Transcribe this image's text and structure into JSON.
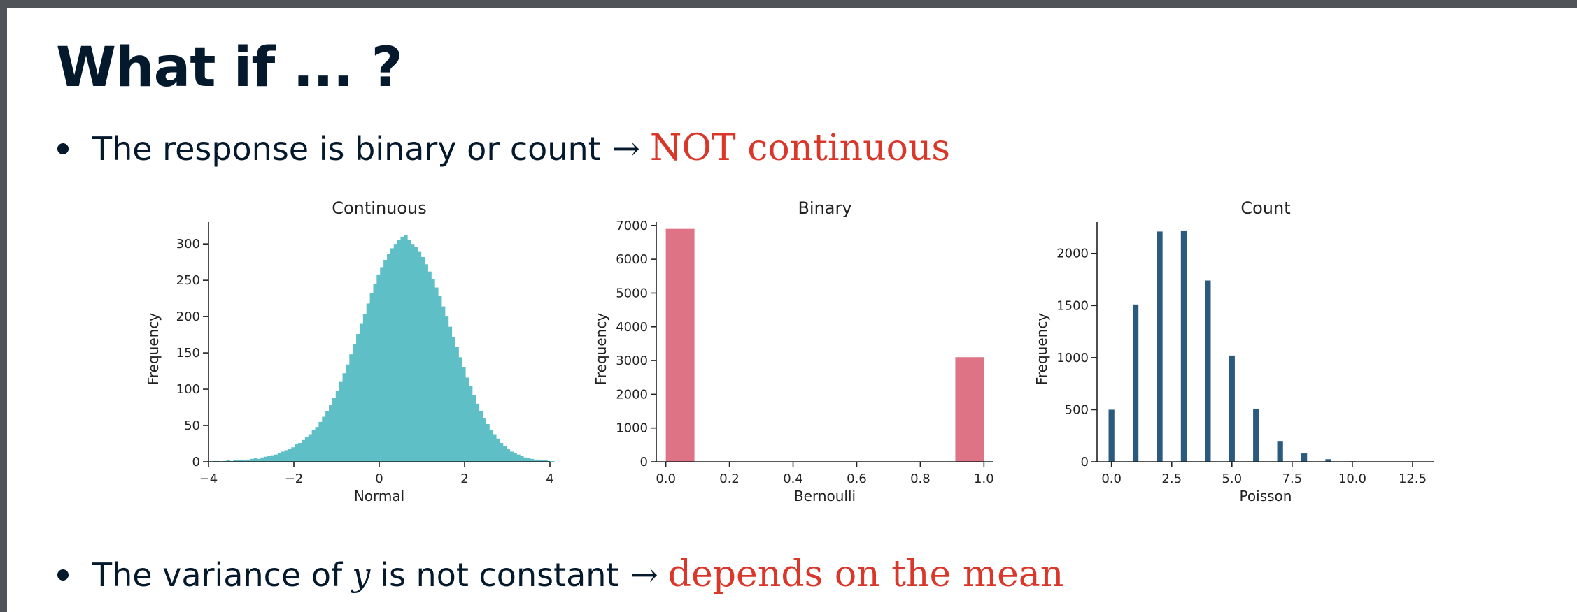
{
  "slide": {
    "title": "What if ... ?",
    "bullet1": {
      "text": "The response is binary or count",
      "arrow": "→",
      "emphasis": "NOT continuous"
    },
    "bullet2": {
      "text_before": "The variance of",
      "var": "y",
      "text_after": "is not constant",
      "arrow": "→",
      "emphasis": "depends on the mean"
    }
  },
  "colors": {
    "title": "#05192d",
    "emphasis": "#d9372a",
    "continuous": "#5fbfc6",
    "binary": "#de7386",
    "count": "#2a5a7d"
  },
  "chart_data": [
    {
      "type": "bar",
      "title": "Continuous",
      "xlabel": "Normal",
      "ylabel": "Frequency",
      "xlim": [
        -4,
        4
      ],
      "ylim": [
        0,
        330
      ],
      "xticks": [
        -4,
        -2,
        0,
        2,
        4
      ],
      "xtick_labels": [
        "−4",
        "−2",
        "0",
        "2",
        "4"
      ],
      "yticks": [
        0,
        50,
        100,
        150,
        200,
        250,
        300
      ],
      "bin_start": -3.9,
      "bin_width": 0.08,
      "values": [
        1,
        1,
        0,
        1,
        2,
        1,
        2,
        2,
        3,
        2,
        3,
        4,
        5,
        4,
        6,
        7,
        8,
        9,
        10,
        12,
        14,
        16,
        18,
        20,
        24,
        26,
        30,
        34,
        38,
        44,
        48,
        55,
        62,
        70,
        78,
        88,
        98,
        110,
        122,
        134,
        148,
        162,
        176,
        190,
        204,
        218,
        232,
        245,
        258,
        268,
        278,
        286,
        294,
        300,
        305,
        310,
        312,
        305,
        300,
        296,
        290,
        282,
        272,
        262,
        252,
        240,
        228,
        214,
        200,
        186,
        172,
        158,
        144,
        130,
        116,
        104,
        92,
        80,
        70,
        60,
        52,
        44,
        38,
        32,
        26,
        22,
        18,
        14,
        12,
        10,
        8,
        6,
        5,
        4,
        3,
        3,
        2,
        2,
        1,
        1
      ]
    },
    {
      "type": "bar",
      "title": "Binary",
      "xlabel": "Bernoulli",
      "ylabel": "Frequency",
      "xlim": [
        -0.03,
        1.03
      ],
      "ylim": [
        0,
        7100
      ],
      "xticks": [
        0.0,
        0.2,
        0.4,
        0.6,
        0.8,
        1.0
      ],
      "xtick_labels": [
        "0.0",
        "0.2",
        "0.4",
        "0.6",
        "0.8",
        "1.0"
      ],
      "yticks": [
        0,
        1000,
        2000,
        3000,
        4000,
        5000,
        6000,
        7000
      ],
      "bars": [
        {
          "x0": 0.0,
          "x1": 0.09,
          "value": 6900
        },
        {
          "x0": 0.91,
          "x1": 1.0,
          "value": 3100
        }
      ]
    },
    {
      "type": "bar",
      "title": "Count",
      "xlabel": "Poisson",
      "ylabel": "Frequency",
      "xlim": [
        -0.6,
        13.4
      ],
      "ylim": [
        0,
        2300
      ],
      "xticks": [
        0,
        2.5,
        5,
        7.5,
        10,
        12.5
      ],
      "xtick_labels": [
        "0.0",
        "2.5",
        "5.0",
        "7.5",
        "10.0",
        "12.5"
      ],
      "yticks": [
        0,
        500,
        1000,
        1500,
        2000
      ],
      "bar_width": 0.24,
      "categories": [
        0,
        1,
        2,
        3,
        4,
        5,
        6,
        7,
        8,
        9,
        10
      ],
      "values": [
        500,
        1510,
        2210,
        2220,
        1740,
        1020,
        510,
        200,
        80,
        25,
        5
      ]
    }
  ]
}
